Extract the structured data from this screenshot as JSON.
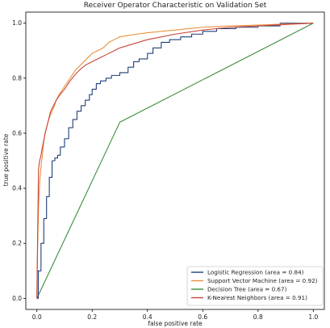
{
  "chart_data": {
    "type": "line",
    "title": "Receiver Operator Characteristic on Validation Set",
    "xlabel": "false positive rate",
    "ylabel": "true positive rate",
    "xlim": [
      -0.04,
      1.04
    ],
    "ylim": [
      -0.04,
      1.04
    ],
    "x_ticks": [
      0.0,
      0.2,
      0.4,
      0.6,
      0.8,
      1.0
    ],
    "x_tick_labels": [
      "0.0",
      "0.2",
      "0.4",
      "0.6",
      "0.8",
      "1.0"
    ],
    "y_ticks": [
      0.0,
      0.2,
      0.4,
      0.6,
      0.8,
      1.0
    ],
    "y_tick_labels": [
      "0.0",
      "0.2",
      "0.4",
      "0.6",
      "0.8",
      "1.0"
    ],
    "grid": false,
    "legend_position": "lower right",
    "series": [
      {
        "name": "Logistic Regression (area = 0.84)",
        "color": "#1f3f78",
        "x": [
          0.0,
          0.005,
          0.005,
          0.015,
          0.015,
          0.025,
          0.025,
          0.035,
          0.035,
          0.045,
          0.045,
          0.055,
          0.055,
          0.065,
          0.065,
          0.075,
          0.075,
          0.085,
          0.085,
          0.1,
          0.1,
          0.115,
          0.115,
          0.13,
          0.13,
          0.145,
          0.145,
          0.16,
          0.16,
          0.175,
          0.175,
          0.19,
          0.19,
          0.2,
          0.2,
          0.215,
          0.215,
          0.23,
          0.23,
          0.25,
          0.25,
          0.27,
          0.27,
          0.3,
          0.3,
          0.33,
          0.33,
          0.35,
          0.35,
          0.37,
          0.37,
          0.4,
          0.4,
          0.42,
          0.42,
          0.45,
          0.45,
          0.48,
          0.48,
          0.52,
          0.52,
          0.56,
          0.56,
          0.6,
          0.6,
          0.65,
          0.65,
          0.72,
          0.72,
          0.8,
          0.8,
          0.88,
          0.88,
          1.0
        ],
        "y": [
          0.0,
          0.0,
          0.1,
          0.1,
          0.2,
          0.2,
          0.29,
          0.29,
          0.37,
          0.37,
          0.44,
          0.44,
          0.5,
          0.5,
          0.51,
          0.51,
          0.52,
          0.52,
          0.55,
          0.55,
          0.58,
          0.58,
          0.62,
          0.62,
          0.65,
          0.65,
          0.68,
          0.68,
          0.7,
          0.7,
          0.72,
          0.72,
          0.74,
          0.74,
          0.76,
          0.76,
          0.78,
          0.78,
          0.79,
          0.79,
          0.8,
          0.8,
          0.81,
          0.81,
          0.82,
          0.82,
          0.84,
          0.84,
          0.86,
          0.86,
          0.87,
          0.87,
          0.89,
          0.89,
          0.91,
          0.91,
          0.93,
          0.93,
          0.94,
          0.94,
          0.95,
          0.95,
          0.96,
          0.96,
          0.97,
          0.97,
          0.98,
          0.98,
          0.985,
          0.985,
          0.99,
          0.99,
          1.0,
          1.0
        ]
      },
      {
        "name": "Support Vector Machine (area = 0.92)",
        "color": "#e8913a",
        "x": [
          0.0,
          0.003,
          0.006,
          0.01,
          0.015,
          0.02,
          0.025,
          0.03,
          0.04,
          0.05,
          0.06,
          0.07,
          0.08,
          0.1,
          0.12,
          0.14,
          0.16,
          0.18,
          0.2,
          0.22,
          0.24,
          0.26,
          0.28,
          0.3,
          0.33,
          0.36,
          0.4,
          0.45,
          0.5,
          0.55,
          0.6,
          0.7,
          0.8,
          0.9,
          1.0
        ],
        "y": [
          0.0,
          0.2,
          0.33,
          0.42,
          0.48,
          0.52,
          0.57,
          0.6,
          0.64,
          0.67,
          0.69,
          0.72,
          0.74,
          0.77,
          0.8,
          0.83,
          0.85,
          0.87,
          0.89,
          0.9,
          0.91,
          0.93,
          0.94,
          0.95,
          0.955,
          0.96,
          0.965,
          0.97,
          0.975,
          0.98,
          0.985,
          0.99,
          0.993,
          0.997,
          1.0
        ]
      },
      {
        "name": "Decision Tree (area = 0.67)",
        "color": "#3a8c3a",
        "x": [
          0.0,
          0.3,
          1.0
        ],
        "y": [
          0.0,
          0.64,
          1.0
        ]
      },
      {
        "name": "K-Nearest Neighbors (area = 0.91)",
        "color": "#c8463a",
        "x": [
          0.0,
          0.003,
          0.006,
          0.01,
          0.015,
          0.02,
          0.03,
          0.04,
          0.05,
          0.06,
          0.07,
          0.08,
          0.1,
          0.12,
          0.14,
          0.16,
          0.18,
          0.2,
          0.22,
          0.25,
          0.28,
          0.3,
          0.35,
          0.4,
          0.45,
          0.5,
          0.6,
          0.7,
          0.8,
          0.9,
          1.0
        ],
        "y": [
          0.0,
          0.25,
          0.47,
          0.5,
          0.52,
          0.55,
          0.6,
          0.64,
          0.68,
          0.7,
          0.72,
          0.735,
          0.76,
          0.79,
          0.815,
          0.835,
          0.85,
          0.86,
          0.87,
          0.885,
          0.9,
          0.91,
          0.925,
          0.94,
          0.95,
          0.96,
          0.975,
          0.985,
          0.99,
          0.995,
          1.0
        ]
      }
    ]
  }
}
